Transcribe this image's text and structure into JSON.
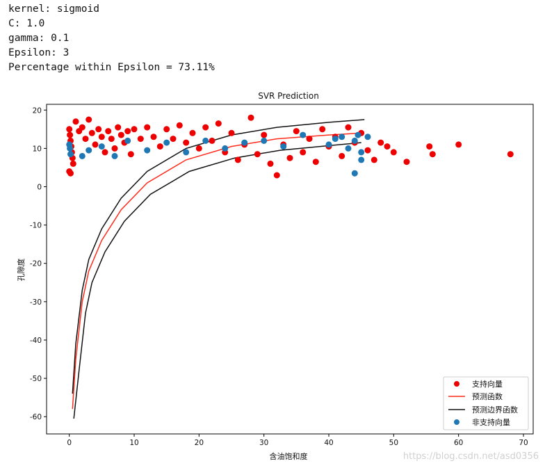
{
  "params": {
    "kernel_line": "kernel: sigmoid",
    "c_line": "C: 1.0",
    "gamma_line": "gamma: 0.1",
    "epsilon_line": "Epsilon: 3",
    "percentage_line": "Percentage within Epsilon = 73.11%"
  },
  "watermark": "https://blog.csdn.net/asd0356",
  "colors": {
    "support_vector": "#ee0000",
    "prediction": "#ff2a1a",
    "boundary": "#111111",
    "non_support_vector": "#1f77b4"
  },
  "chart_data": {
    "type": "scatter",
    "title": "SVR Prediction",
    "xlabel": "含油饱和度",
    "ylabel": "孔隙度",
    "xlim": [
      -3.5,
      71.5
    ],
    "ylim": [
      -64.5,
      21.5
    ],
    "xticks": [
      0,
      10,
      20,
      30,
      40,
      50,
      60,
      70
    ],
    "yticks": [
      -60,
      -50,
      -40,
      -30,
      -20,
      -10,
      0,
      10,
      20
    ],
    "grid": false,
    "legend_position": "lower-right",
    "legend": [
      "支持向量",
      "预测函数",
      "预测边界函数",
      "非支持向量"
    ],
    "series": [
      {
        "name": "支持向量",
        "kind": "scatter",
        "points": [
          [
            0.0,
            15.0
          ],
          [
            0.1,
            13.5
          ],
          [
            0.2,
            12.0
          ],
          [
            0.3,
            10.5
          ],
          [
            0.4,
            9.0
          ],
          [
            0.5,
            7.5
          ],
          [
            0.6,
            6.0
          ],
          [
            0.0,
            4.0
          ],
          [
            0.2,
            3.5
          ],
          [
            1.0,
            17.0
          ],
          [
            1.5,
            14.5
          ],
          [
            2.0,
            15.5
          ],
          [
            2.5,
            12.5
          ],
          [
            3.0,
            17.5
          ],
          [
            3.5,
            14.0
          ],
          [
            4.0,
            11.0
          ],
          [
            4.5,
            15.0
          ],
          [
            5.0,
            13.0
          ],
          [
            5.5,
            9.0
          ],
          [
            6.0,
            14.5
          ],
          [
            6.5,
            12.5
          ],
          [
            7.0,
            10.0
          ],
          [
            7.5,
            15.5
          ],
          [
            8.0,
            13.5
          ],
          [
            8.5,
            11.5
          ],
          [
            9.0,
            14.5
          ],
          [
            9.5,
            8.5
          ],
          [
            10.0,
            15.0
          ],
          [
            11.0,
            12.5
          ],
          [
            12.0,
            15.5
          ],
          [
            13.0,
            13.0
          ],
          [
            14.0,
            10.5
          ],
          [
            15.0,
            15.0
          ],
          [
            16.0,
            12.5
          ],
          [
            17.0,
            16.0
          ],
          [
            18.0,
            11.5
          ],
          [
            19.0,
            14.0
          ],
          [
            20.0,
            10.0
          ],
          [
            21.0,
            15.5
          ],
          [
            22.0,
            12.0
          ],
          [
            23.0,
            16.5
          ],
          [
            24.0,
            9.0
          ],
          [
            25.0,
            14.0
          ],
          [
            26.0,
            7.0
          ],
          [
            27.0,
            11.0
          ],
          [
            28.0,
            18.0
          ],
          [
            29.0,
            8.5
          ],
          [
            30.0,
            13.5
          ],
          [
            31.0,
            6.0
          ],
          [
            32.0,
            3.0
          ],
          [
            33.0,
            11.0
          ],
          [
            34.0,
            7.5
          ],
          [
            35.0,
            14.5
          ],
          [
            36.0,
            9.0
          ],
          [
            37.0,
            12.5
          ],
          [
            38.0,
            6.5
          ],
          [
            39.0,
            15.0
          ],
          [
            40.0,
            10.5
          ],
          [
            41.0,
            13.0
          ],
          [
            42.0,
            8.0
          ],
          [
            43.0,
            15.5
          ],
          [
            44.0,
            11.5
          ],
          [
            45.0,
            14.0
          ],
          [
            46.0,
            9.5
          ],
          [
            47.0,
            7.0
          ],
          [
            48.0,
            11.5
          ],
          [
            49.0,
            10.5
          ],
          [
            50.0,
            9.0
          ],
          [
            52.0,
            6.5
          ],
          [
            55.5,
            10.5
          ],
          [
            56.0,
            8.5
          ],
          [
            60.0,
            11.0
          ],
          [
            68.0,
            8.5
          ]
        ]
      },
      {
        "name": "预测函数",
        "kind": "line",
        "points": [
          [
            0.5,
            -58.0
          ],
          [
            1.0,
            -45.0
          ],
          [
            2.0,
            -30.0
          ],
          [
            3.0,
            -22.0
          ],
          [
            5.0,
            -14.0
          ],
          [
            8.0,
            -6.0
          ],
          [
            12.0,
            1.0
          ],
          [
            18.0,
            7.0
          ],
          [
            25.0,
            10.5
          ],
          [
            32.0,
            12.5
          ],
          [
            40.0,
            13.5
          ],
          [
            45.0,
            14.0
          ]
        ]
      },
      {
        "name": "预测边界函数",
        "kind": "line",
        "upper": [
          [
            0.5,
            -54.0
          ],
          [
            1.0,
            -41.0
          ],
          [
            2.0,
            -27.0
          ],
          [
            3.0,
            -19.0
          ],
          [
            5.0,
            -11.0
          ],
          [
            8.0,
            -3.0
          ],
          [
            12.0,
            4.0
          ],
          [
            18.0,
            10.0
          ],
          [
            25.0,
            13.5
          ],
          [
            32.0,
            15.5
          ],
          [
            40.0,
            16.8
          ],
          [
            45.5,
            17.5
          ]
        ],
        "lower": [
          [
            0.7,
            -60.5
          ],
          [
            1.5,
            -48.0
          ],
          [
            2.5,
            -33.0
          ],
          [
            3.5,
            -25.0
          ],
          [
            5.5,
            -17.0
          ],
          [
            8.5,
            -9.0
          ],
          [
            12.5,
            -2.0
          ],
          [
            18.5,
            4.0
          ],
          [
            25.5,
            7.5
          ],
          [
            32.5,
            9.5
          ],
          [
            40.5,
            10.8
          ],
          [
            45.0,
            11.5
          ]
        ]
      },
      {
        "name": "非支持向量",
        "kind": "scatter",
        "points": [
          [
            0.0,
            11.0
          ],
          [
            0.1,
            10.0
          ],
          [
            0.2,
            8.5
          ],
          [
            2.0,
            8.0
          ],
          [
            3.0,
            9.5
          ],
          [
            5.0,
            10.5
          ],
          [
            7.0,
            8.0
          ],
          [
            9.0,
            12.0
          ],
          [
            12.0,
            9.5
          ],
          [
            15.0,
            11.5
          ],
          [
            18.0,
            9.0
          ],
          [
            21.0,
            12.0
          ],
          [
            24.0,
            10.0
          ],
          [
            27.0,
            11.5
          ],
          [
            30.0,
            12.0
          ],
          [
            33.0,
            10.5
          ],
          [
            36.0,
            13.5
          ],
          [
            40.0,
            11.0
          ],
          [
            41.0,
            12.5
          ],
          [
            42.0,
            13.0
          ],
          [
            43.0,
            10.0
          ],
          [
            44.0,
            12.0
          ],
          [
            44.5,
            13.5
          ],
          [
            45.0,
            9.0
          ],
          [
            45.0,
            7.0
          ],
          [
            44.0,
            3.5
          ],
          [
            46.0,
            13.0
          ]
        ]
      }
    ]
  }
}
